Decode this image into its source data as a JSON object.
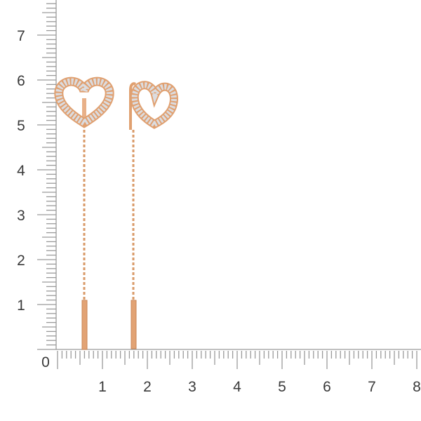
{
  "image": {
    "subject": "heart threader earrings",
    "metal_color": "#e0a070",
    "stone_color": "#e8e8ea"
  },
  "ruler": {
    "unit_labels_horizontal": [
      "0",
      "1",
      "2",
      "3",
      "4",
      "5",
      "6",
      "7",
      "8"
    ],
    "unit_labels_vertical": [
      "1",
      "2",
      "3",
      "4",
      "5",
      "6",
      "7"
    ],
    "tick_color": "#9a9a9a",
    "subdivisions_per_unit": 10
  }
}
